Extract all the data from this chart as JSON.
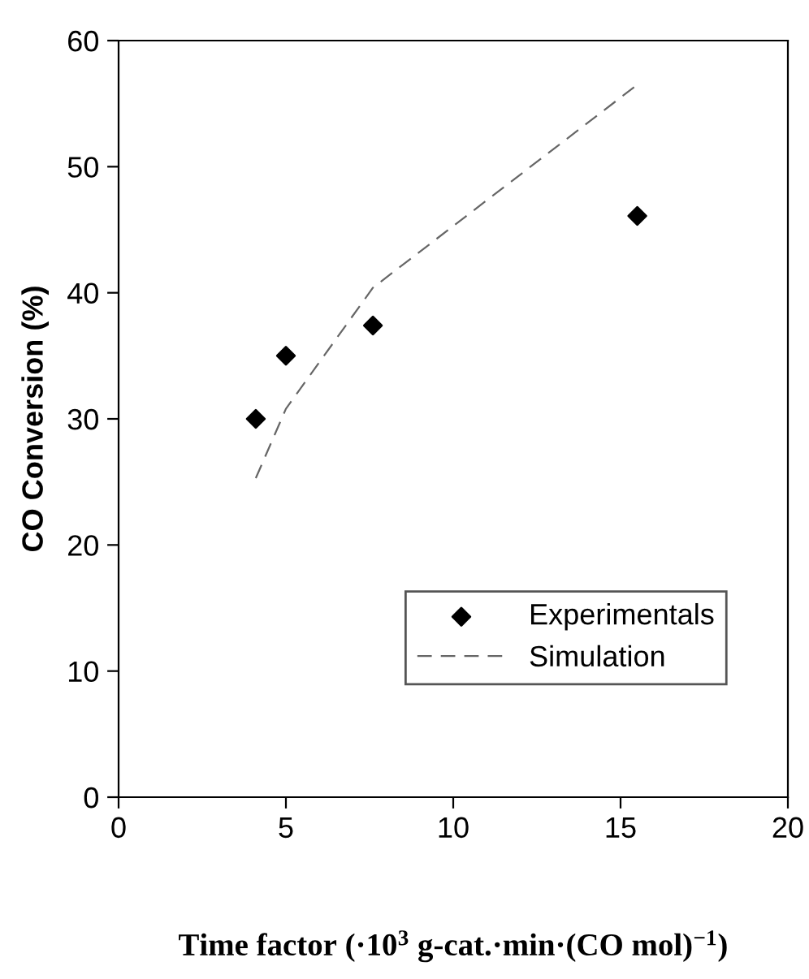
{
  "chart_data": {
    "type": "scatter",
    "xlabel": "Time factor (·10$^{3}$ g-cat.·min·(CO mol)$^{−1}$)",
    "ylabel": "CO Conversion (%)",
    "xlim": [
      0,
      20
    ],
    "xticks": [
      0,
      5,
      10,
      15,
      20
    ],
    "ylim": [
      0,
      60
    ],
    "yticks": [
      0,
      10,
      20,
      30,
      40,
      50,
      60
    ],
    "grid": false,
    "legend": "bottom right",
    "series": [
      {
        "name": "Experimentals",
        "marker": "diamond",
        "color": "#000000",
        "x": [
          4.1,
          5,
          7.6,
          15.5
        ],
        "values": [
          30,
          35,
          37.4,
          46.1
        ]
      },
      {
        "name": "Simulation",
        "type": "line",
        "line_style": "dashed",
        "marker": "none",
        "color": "#666666",
        "x": [
          4.1,
          5,
          7.6,
          15.5
        ],
        "values": [
          25.3,
          30.8,
          40.4,
          56.5
        ]
      }
    ]
  }
}
